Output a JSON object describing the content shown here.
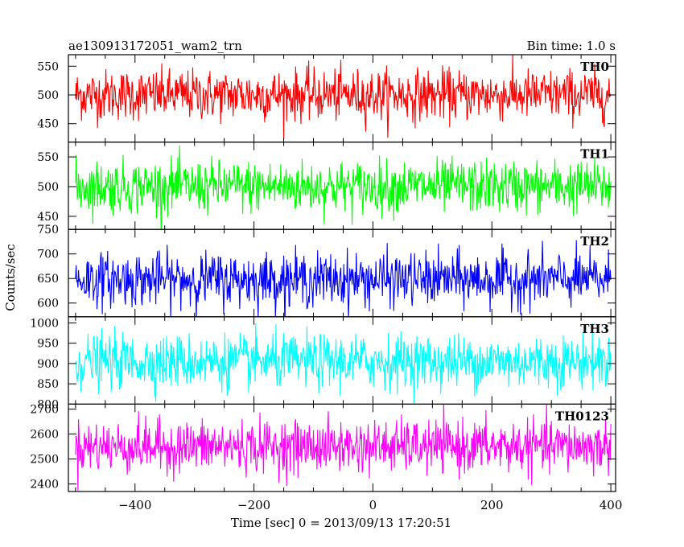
{
  "header": {
    "title": "ae130913172051_wam2_trn",
    "bin_time": "Bin time: 1.0 s"
  },
  "chart_data": {
    "type": "line",
    "title": "ae130913172051_wam2_trn",
    "xlabel": "Time [sec] 0 = 2013/09/13 17:20:51",
    "ylabel": "Counts/sec",
    "xlim": [
      -512,
      408
    ],
    "x_range": [
      -500,
      400
    ],
    "x_ticks": [
      -400,
      -200,
      0,
      200,
      400
    ],
    "x_ticklabels": [
      "−400",
      "−200",
      "0",
      "200",
      "400"
    ],
    "grid": false,
    "panels": [
      {
        "name": "TH0",
        "color": "#ff0000",
        "ylim": [
          418,
          570
        ],
        "yticks": [
          450,
          500,
          550
        ],
        "mean": 500,
        "spread": 22
      },
      {
        "name": "TH1",
        "color": "#00ff00",
        "ylim": [
          428,
          575
        ],
        "yticks": [
          450,
          500,
          550
        ],
        "mean": 500,
        "spread": 22
      },
      {
        "name": "TH2",
        "color": "#0000ff",
        "ylim": [
          572,
          750
        ],
        "yticks": [
          600,
          650,
          700,
          750
        ],
        "mean": 648,
        "spread": 27
      },
      {
        "name": "TH3",
        "color": "#00ffff",
        "ylim": [
          800,
          1015
        ],
        "yticks": [
          800,
          850,
          900,
          950,
          1000
        ],
        "mean": 905,
        "spread": 33
      },
      {
        "name": "TH0123",
        "color": "#ff00ff",
        "ylim": [
          2370,
          2720
        ],
        "yticks": [
          2400,
          2500,
          2600,
          2700
        ],
        "mean": 2550,
        "spread": 52
      }
    ]
  }
}
